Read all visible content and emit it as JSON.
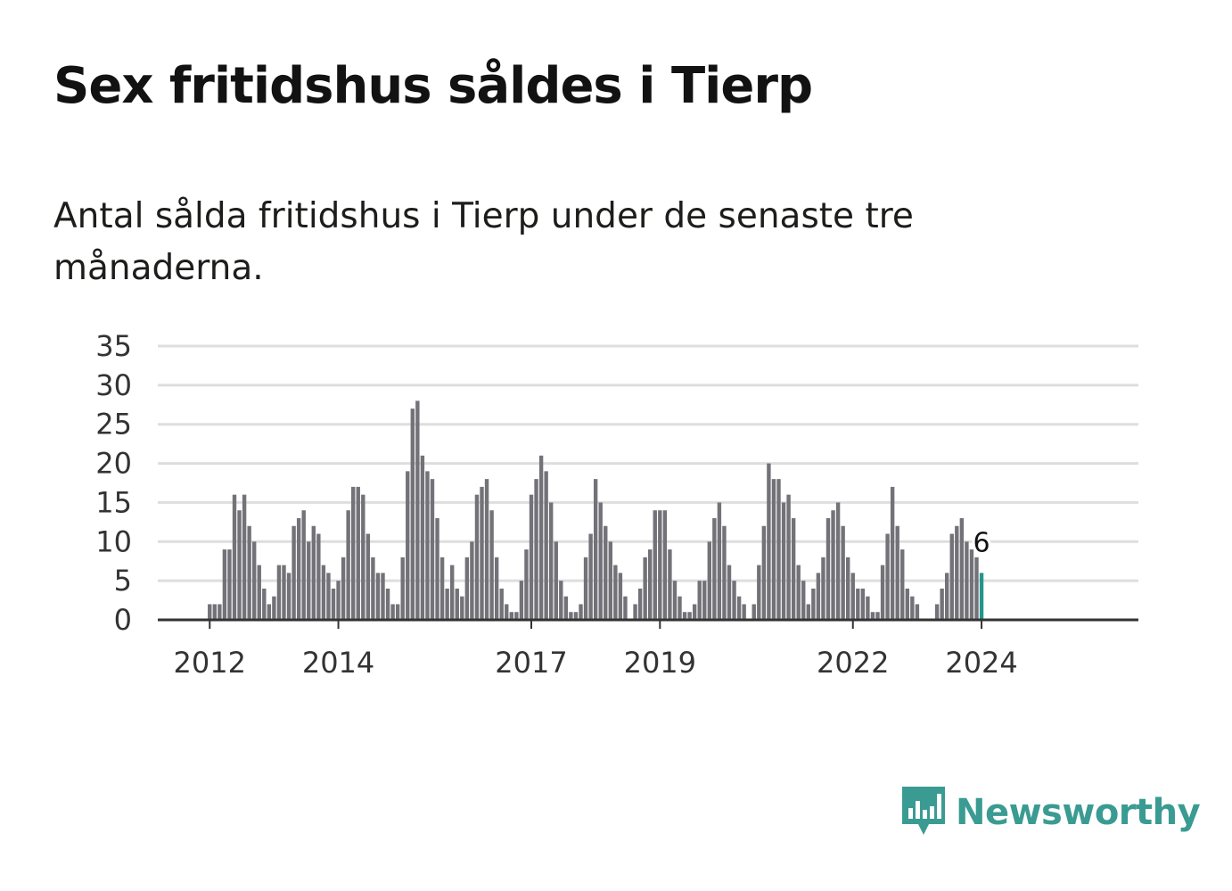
{
  "title": "Sex fritidshus såldes i Tierp",
  "subtitle": "Antal sålda fritidshus i Tierp under de senaste tre månaderna.",
  "logo_text": "Newsworthy",
  "colors": {
    "bar": "#737278",
    "highlight": "#23958d",
    "grid": "#dedede",
    "brand": "#3a9b92"
  },
  "chart_data": {
    "type": "bar",
    "title": "Sex fritidshus såldes i Tierp",
    "subtitle": "Antal sålda fritidshus i Tierp under de senaste tre månaderna.",
    "xlabel": "",
    "ylabel": "",
    "ylim": [
      0,
      35
    ],
    "yticks": [
      0,
      5,
      10,
      15,
      20,
      25,
      30,
      35
    ],
    "xticks": [
      {
        "label": "2012",
        "index": 1
      },
      {
        "label": "2014",
        "index": 27
      },
      {
        "label": "2017",
        "index": 66
      },
      {
        "label": "2019",
        "index": 92
      },
      {
        "label": "2022",
        "index": 131
      },
      {
        "label": "2024",
        "index": 157
      }
    ],
    "grid": true,
    "last_value_label": "6",
    "values": [
      0,
      2,
      2,
      2,
      9,
      9,
      16,
      14,
      16,
      12,
      10,
      7,
      4,
      2,
      3,
      7,
      7,
      6,
      12,
      13,
      14,
      10,
      12,
      11,
      7,
      6,
      4,
      5,
      8,
      14,
      17,
      17,
      16,
      11,
      8,
      6,
      6,
      4,
      2,
      2,
      8,
      19,
      27,
      28,
      21,
      19,
      18,
      13,
      8,
      4,
      7,
      4,
      3,
      8,
      10,
      16,
      17,
      18,
      14,
      8,
      4,
      2,
      1,
      1,
      5,
      9,
      16,
      18,
      21,
      19,
      15,
      10,
      5,
      3,
      1,
      1,
      2,
      8,
      11,
      18,
      15,
      12,
      10,
      7,
      6,
      3,
      0,
      2,
      4,
      8,
      9,
      14,
      14,
      14,
      9,
      5,
      3,
      1,
      1,
      2,
      5,
      5,
      10,
      13,
      15,
      12,
      7,
      5,
      3,
      2,
      0,
      2,
      7,
      12,
      20,
      18,
      18,
      15,
      16,
      13,
      7,
      5,
      2,
      4,
      6,
      8,
      13,
      14,
      15,
      12,
      8,
      6,
      4,
      4,
      3,
      1,
      1,
      7,
      11,
      17,
      12,
      9,
      4,
      3,
      2,
      0,
      0,
      0,
      2,
      4,
      6,
      11,
      12,
      13,
      10,
      9,
      8,
      6
    ]
  }
}
